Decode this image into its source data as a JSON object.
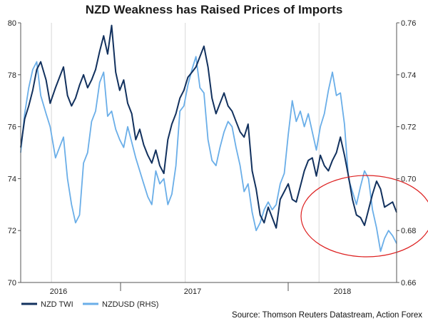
{
  "chart_data": {
    "type": "line",
    "title": "NZD Weakness has Raised Prices of Imports",
    "source": "Source: Thomson Reuters Datastream, Action Forex",
    "x_tick_labels": [
      "2016",
      "2017",
      "2018"
    ],
    "y_left": {
      "lim": [
        70,
        80
      ],
      "ticks": [
        "70",
        "72",
        "74",
        "76",
        "78",
        "80"
      ]
    },
    "y_right": {
      "lim": [
        0.66,
        0.76
      ],
      "ticks": [
        "0.66",
        "0.68",
        "0.70",
        "0.72",
        "0.74",
        "0.76"
      ]
    },
    "xlim": [
      2015.77,
      2018.58
    ],
    "x_ticks_years": [
      2016,
      2017,
      2018
    ],
    "series": [
      {
        "name": "NZD TWI",
        "axis": "left",
        "color": "#12315e",
        "x": [
          2015.77,
          2015.8,
          2015.83,
          2015.86,
          2015.89,
          2015.92,
          2015.96,
          2015.99,
          2016.03,
          2016.06,
          2016.09,
          2016.12,
          2016.15,
          2016.18,
          2016.21,
          2016.24,
          2016.27,
          2016.3,
          2016.33,
          2016.36,
          2016.39,
          2016.42,
          2016.45,
          2016.48,
          2016.51,
          2016.54,
          2016.57,
          2016.6,
          2016.63,
          2016.66,
          2016.69,
          2016.72,
          2016.75,
          2016.78,
          2016.81,
          2016.84,
          2016.87,
          2016.9,
          2016.93,
          2016.96,
          2016.99,
          2017.02,
          2017.05,
          2017.08,
          2017.11,
          2017.14,
          2017.17,
          2017.2,
          2017.23,
          2017.26,
          2017.29,
          2017.32,
          2017.35,
          2017.38,
          2017.41,
          2017.44,
          2017.47,
          2017.5,
          2017.53,
          2017.56,
          2017.59,
          2017.62,
          2017.65,
          2017.68,
          2017.71,
          2017.74,
          2017.77,
          2017.8,
          2017.83,
          2017.86,
          2017.89,
          2017.92,
          2017.95,
          2017.98,
          2018.01,
          2018.04,
          2018.07,
          2018.1,
          2018.13,
          2018.16,
          2018.19,
          2018.22,
          2018.25,
          2018.28,
          2018.31,
          2018.34,
          2018.37,
          2018.4,
          2018.43,
          2018.46,
          2018.49,
          2018.52,
          2018.55,
          2018.58
        ],
        "values": [
          75.2,
          76.3,
          76.8,
          77.4,
          78.2,
          78.5,
          77.8,
          76.9,
          77.5,
          77.9,
          78.3,
          77.2,
          76.8,
          77.1,
          77.6,
          78.0,
          77.5,
          77.8,
          78.2,
          78.9,
          79.5,
          78.8,
          79.9,
          78.1,
          77.4,
          77.8,
          76.9,
          76.5,
          75.5,
          75.9,
          75.3,
          74.9,
          74.6,
          75.1,
          74.5,
          74.2,
          75.5,
          76.1,
          76.5,
          77.1,
          77.4,
          77.9,
          78.1,
          78.3,
          78.7,
          79.1,
          78.3,
          77.1,
          76.5,
          76.9,
          77.3,
          76.8,
          76.6,
          76.2,
          75.8,
          75.6,
          76.1,
          74.3,
          73.6,
          72.6,
          72.3,
          72.9,
          72.5,
          72.1,
          73.2,
          73.5,
          73.8,
          73.2,
          73.1,
          73.7,
          74.3,
          74.7,
          74.8,
          74.1,
          74.9,
          74.5,
          74.3,
          74.7,
          75.0,
          75.6,
          74.9,
          74.1,
          73.2,
          72.6,
          72.5,
          72.2,
          72.8,
          73.4,
          73.9,
          73.6,
          72.9,
          73.0,
          73.1,
          72.7
        ]
      },
      {
        "name": "NZDUSD (RHS)",
        "axis": "right",
        "color": "#6aaee8",
        "x": [
          2015.77,
          2015.8,
          2015.83,
          2015.86,
          2015.89,
          2015.92,
          2015.96,
          2015.99,
          2016.03,
          2016.06,
          2016.09,
          2016.12,
          2016.15,
          2016.18,
          2016.21,
          2016.24,
          2016.27,
          2016.3,
          2016.33,
          2016.36,
          2016.39,
          2016.42,
          2016.45,
          2016.48,
          2016.51,
          2016.54,
          2016.57,
          2016.6,
          2016.63,
          2016.66,
          2016.69,
          2016.72,
          2016.75,
          2016.78,
          2016.81,
          2016.84,
          2016.87,
          2016.9,
          2016.93,
          2016.96,
          2016.99,
          2017.02,
          2017.05,
          2017.08,
          2017.11,
          2017.14,
          2017.17,
          2017.2,
          2017.23,
          2017.26,
          2017.29,
          2017.32,
          2017.35,
          2017.38,
          2017.41,
          2017.44,
          2017.47,
          2017.5,
          2017.53,
          2017.56,
          2017.59,
          2017.62,
          2017.65,
          2017.68,
          2017.71,
          2017.74,
          2017.77,
          2017.8,
          2017.83,
          2017.86,
          2017.89,
          2017.92,
          2017.95,
          2017.98,
          2018.01,
          2018.04,
          2018.07,
          2018.1,
          2018.13,
          2018.16,
          2018.19,
          2018.22,
          2018.25,
          2018.28,
          2018.31,
          2018.34,
          2018.37,
          2018.4,
          2018.43,
          2018.46,
          2018.49,
          2018.52,
          2018.55,
          2018.58
        ],
        "values": [
          0.71,
          0.725,
          0.735,
          0.742,
          0.745,
          0.732,
          0.725,
          0.72,
          0.708,
          0.712,
          0.716,
          0.7,
          0.69,
          0.683,
          0.686,
          0.706,
          0.71,
          0.722,
          0.726,
          0.737,
          0.741,
          0.724,
          0.726,
          0.719,
          0.715,
          0.712,
          0.72,
          0.714,
          0.708,
          0.703,
          0.698,
          0.693,
          0.69,
          0.703,
          0.698,
          0.7,
          0.69,
          0.694,
          0.705,
          0.726,
          0.728,
          0.736,
          0.742,
          0.747,
          0.735,
          0.733,
          0.715,
          0.707,
          0.705,
          0.712,
          0.718,
          0.722,
          0.72,
          0.712,
          0.705,
          0.695,
          0.698,
          0.687,
          0.68,
          0.683,
          0.688,
          0.691,
          0.688,
          0.69,
          0.698,
          0.702,
          0.717,
          0.73,
          0.722,
          0.726,
          0.72,
          0.725,
          0.718,
          0.711,
          0.72,
          0.725,
          0.734,
          0.741,
          0.732,
          0.733,
          0.721,
          0.7,
          0.695,
          0.69,
          0.697,
          0.703,
          0.7,
          0.688,
          0.681,
          0.672,
          0.677,
          0.68,
          0.678,
          0.675
        ]
      }
    ],
    "annotation": {
      "type": "ellipse",
      "color": "#dd2020",
      "note": "highlighted 2018 decline"
    }
  }
}
